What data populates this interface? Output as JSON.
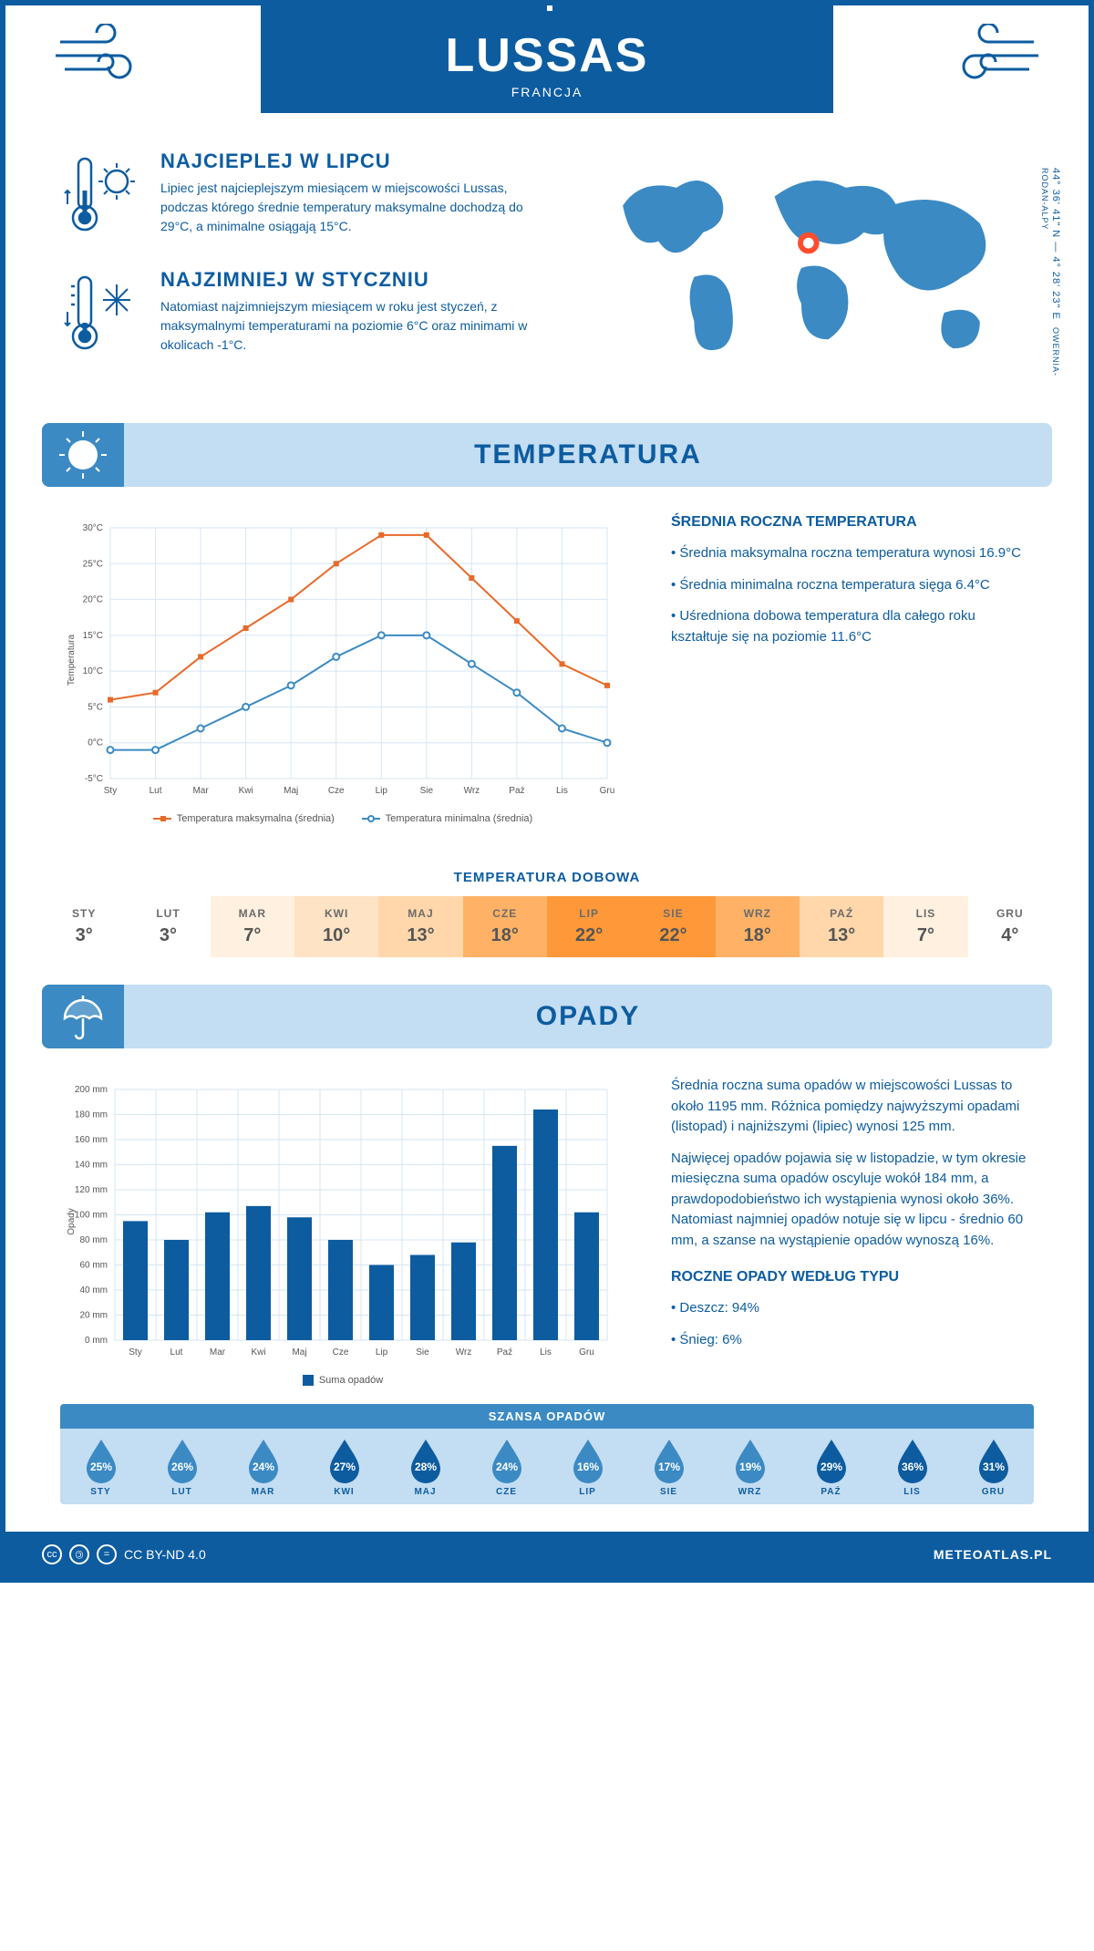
{
  "header": {
    "city": "LUSSAS",
    "country": "FRANCJA"
  },
  "coords": "44° 36' 41\" N — 4° 28' 23\" E",
  "region": "OWERNIA-RODAN-ALPY",
  "warm": {
    "title": "NAJCIEPLEJ W LIPCU",
    "text": "Lipiec jest najcieplejszym miesiącem w miejscowości Lussas, podczas którego średnie temperatury maksymalne dochodzą do 29°C, a minimalne osiągają 15°C."
  },
  "cold": {
    "title": "NAJZIMNIEJ W STYCZNIU",
    "text": "Natomiast najzimniejszym miesiącem w roku jest styczeń, z maksymalnymi temperaturami na poziomie 6°C oraz minimami w okolicach -1°C."
  },
  "temp_section": {
    "title": "TEMPERATURA",
    "chart": {
      "type": "line",
      "months": [
        "Sty",
        "Lut",
        "Mar",
        "Kwi",
        "Maj",
        "Cze",
        "Lip",
        "Sie",
        "Wrz",
        "Paź",
        "Lis",
        "Gru"
      ],
      "max_series": [
        6,
        7,
        12,
        16,
        20,
        25,
        29,
        29,
        23,
        17,
        11,
        8
      ],
      "min_series": [
        -1,
        -1,
        2,
        5,
        8,
        12,
        15,
        15,
        11,
        7,
        2,
        0
      ],
      "max_color": "#e86a2a",
      "min_color": "#3b8ac4",
      "ylim": [
        -5,
        30
      ],
      "ytick_step": 5,
      "ylabel": "Temperatura",
      "legend_max": "Temperatura maksymalna (średnia)",
      "legend_min": "Temperatura minimalna (średnia)",
      "grid_color": "#d6e6f3",
      "background": "#ffffff"
    },
    "side": {
      "title": "ŚREDNIA ROCZNA TEMPERATURA",
      "bullets": [
        "Średnia maksymalna roczna temperatura wynosi 16.9°C",
        "Średnia minimalna roczna temperatura sięga 6.4°C",
        "Uśredniona dobowa temperatura dla całego roku kształtuje się na poziomie 11.6°C"
      ]
    },
    "daily": {
      "title": "TEMPERATURA DOBOWA",
      "months": [
        "STY",
        "LUT",
        "MAR",
        "KWI",
        "MAJ",
        "CZE",
        "LIP",
        "SIE",
        "WRZ",
        "PAŹ",
        "LIS",
        "GRU"
      ],
      "values": [
        "3°",
        "3°",
        "7°",
        "10°",
        "13°",
        "18°",
        "22°",
        "22°",
        "18°",
        "13°",
        "7°",
        "4°"
      ],
      "colors": [
        "#ffffff",
        "#ffffff",
        "#fff0df",
        "#ffe3c5",
        "#ffd7aa",
        "#ffb265",
        "#ff9838",
        "#ff9838",
        "#ffb265",
        "#ffd7aa",
        "#fff0df",
        "#ffffff"
      ]
    }
  },
  "precip_section": {
    "title": "OPADY",
    "chart": {
      "type": "bar",
      "months": [
        "Sty",
        "Lut",
        "Mar",
        "Kwi",
        "Maj",
        "Cze",
        "Lip",
        "Sie",
        "Wrz",
        "Paź",
        "Lis",
        "Gru"
      ],
      "values": [
        95,
        80,
        102,
        107,
        98,
        80,
        60,
        68,
        78,
        155,
        184,
        102
      ],
      "bar_color": "#0d5ca0",
      "ylim": [
        0,
        200
      ],
      "ytick_step": 20,
      "ylabel": "Opady",
      "legend": "Suma opadów",
      "grid_color": "#d6e6f3"
    },
    "side": {
      "p1": "Średnia roczna suma opadów w miejscowości Lussas to około 1195 mm. Różnica pomiędzy najwyższymi opadami (listopad) i najniższymi (lipiec) wynosi 125 mm.",
      "p2": "Najwięcej opadów pojawia się w listopadzie, w tym okresie miesięczna suma opadów oscyluje wokół 184 mm, a prawdopodobieństwo ich wystąpienia wynosi około 36%. Natomiast najmniej opadów notuje się w lipcu - średnio 60 mm, a szanse na wystąpienie opadów wynoszą 16%.",
      "type_title": "ROCZNE OPADY WEDŁUG TYPU",
      "types": [
        "Deszcz: 94%",
        "Śnieg: 6%"
      ]
    },
    "chance": {
      "title": "SZANSA OPADÓW",
      "months": [
        "STY",
        "LUT",
        "MAR",
        "KWI",
        "MAJ",
        "CZE",
        "LIP",
        "SIE",
        "WRZ",
        "PAŹ",
        "LIS",
        "GRU"
      ],
      "values": [
        "25%",
        "26%",
        "24%",
        "27%",
        "28%",
        "24%",
        "16%",
        "17%",
        "19%",
        "29%",
        "36%",
        "31%"
      ],
      "drop_color": "#0d5ca0",
      "drop_color_light": "#3b8ac4"
    }
  },
  "footer": {
    "license": "CC BY-ND 4.0",
    "site": "METEOATLAS.PL"
  }
}
